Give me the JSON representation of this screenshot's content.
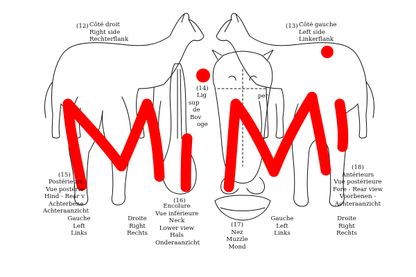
{
  "labels": {
    "right_side": {
      "num": "(12)",
      "lines": [
        "Côté droit",
        "Right side",
        "Rechterflank"
      ]
    },
    "left_side": {
      "num": "(13)",
      "lines": [
        "Côté gauche",
        "Left side",
        "Linkerflank"
      ]
    },
    "upper": {
      "num": "(14)",
      "lines": [
        "Lig",
        "sup",
        "de",
        "Bov",
        "oge"
      ]
    },
    "upper_right": {
      "lines": [
        "per"
      ]
    },
    "rear": {
      "num": "(15)",
      "lines": [
        "Postérieurs",
        "Vue postérie",
        "Hind - Rear v",
        "Achterbene",
        "Achteraanzicht"
      ]
    },
    "neck": {
      "num": "(16)",
      "lines": [
        "Encolure",
        "Vue inférieure",
        "Neck",
        "Lower view",
        "Hals",
        "Onderaanzicht"
      ]
    },
    "muzzle": {
      "num": "(17)",
      "lines": [
        "Nez",
        "Muzzle",
        "Mond"
      ]
    },
    "front": {
      "num": "(18)",
      "lines": [
        "Antérieurs",
        "Vue postérieure",
        "Fore - Rear view",
        "Voorbenen -",
        "Achteraanzicht"
      ]
    },
    "left_rear": {
      "lines": [
        "Gauche",
        "Left",
        "Links"
      ]
    },
    "right_rear": {
      "lines": [
        "Droite",
        "Right",
        "Rechts"
      ]
    },
    "left_front": {
      "lines": [
        "Gauche",
        "Left",
        "Links"
      ]
    },
    "right_front": {
      "lines": [
        "Droite",
        "Right",
        "Rechts"
      ]
    }
  },
  "overlay": {
    "text": "MiMi",
    "color": "#ff0000"
  }
}
